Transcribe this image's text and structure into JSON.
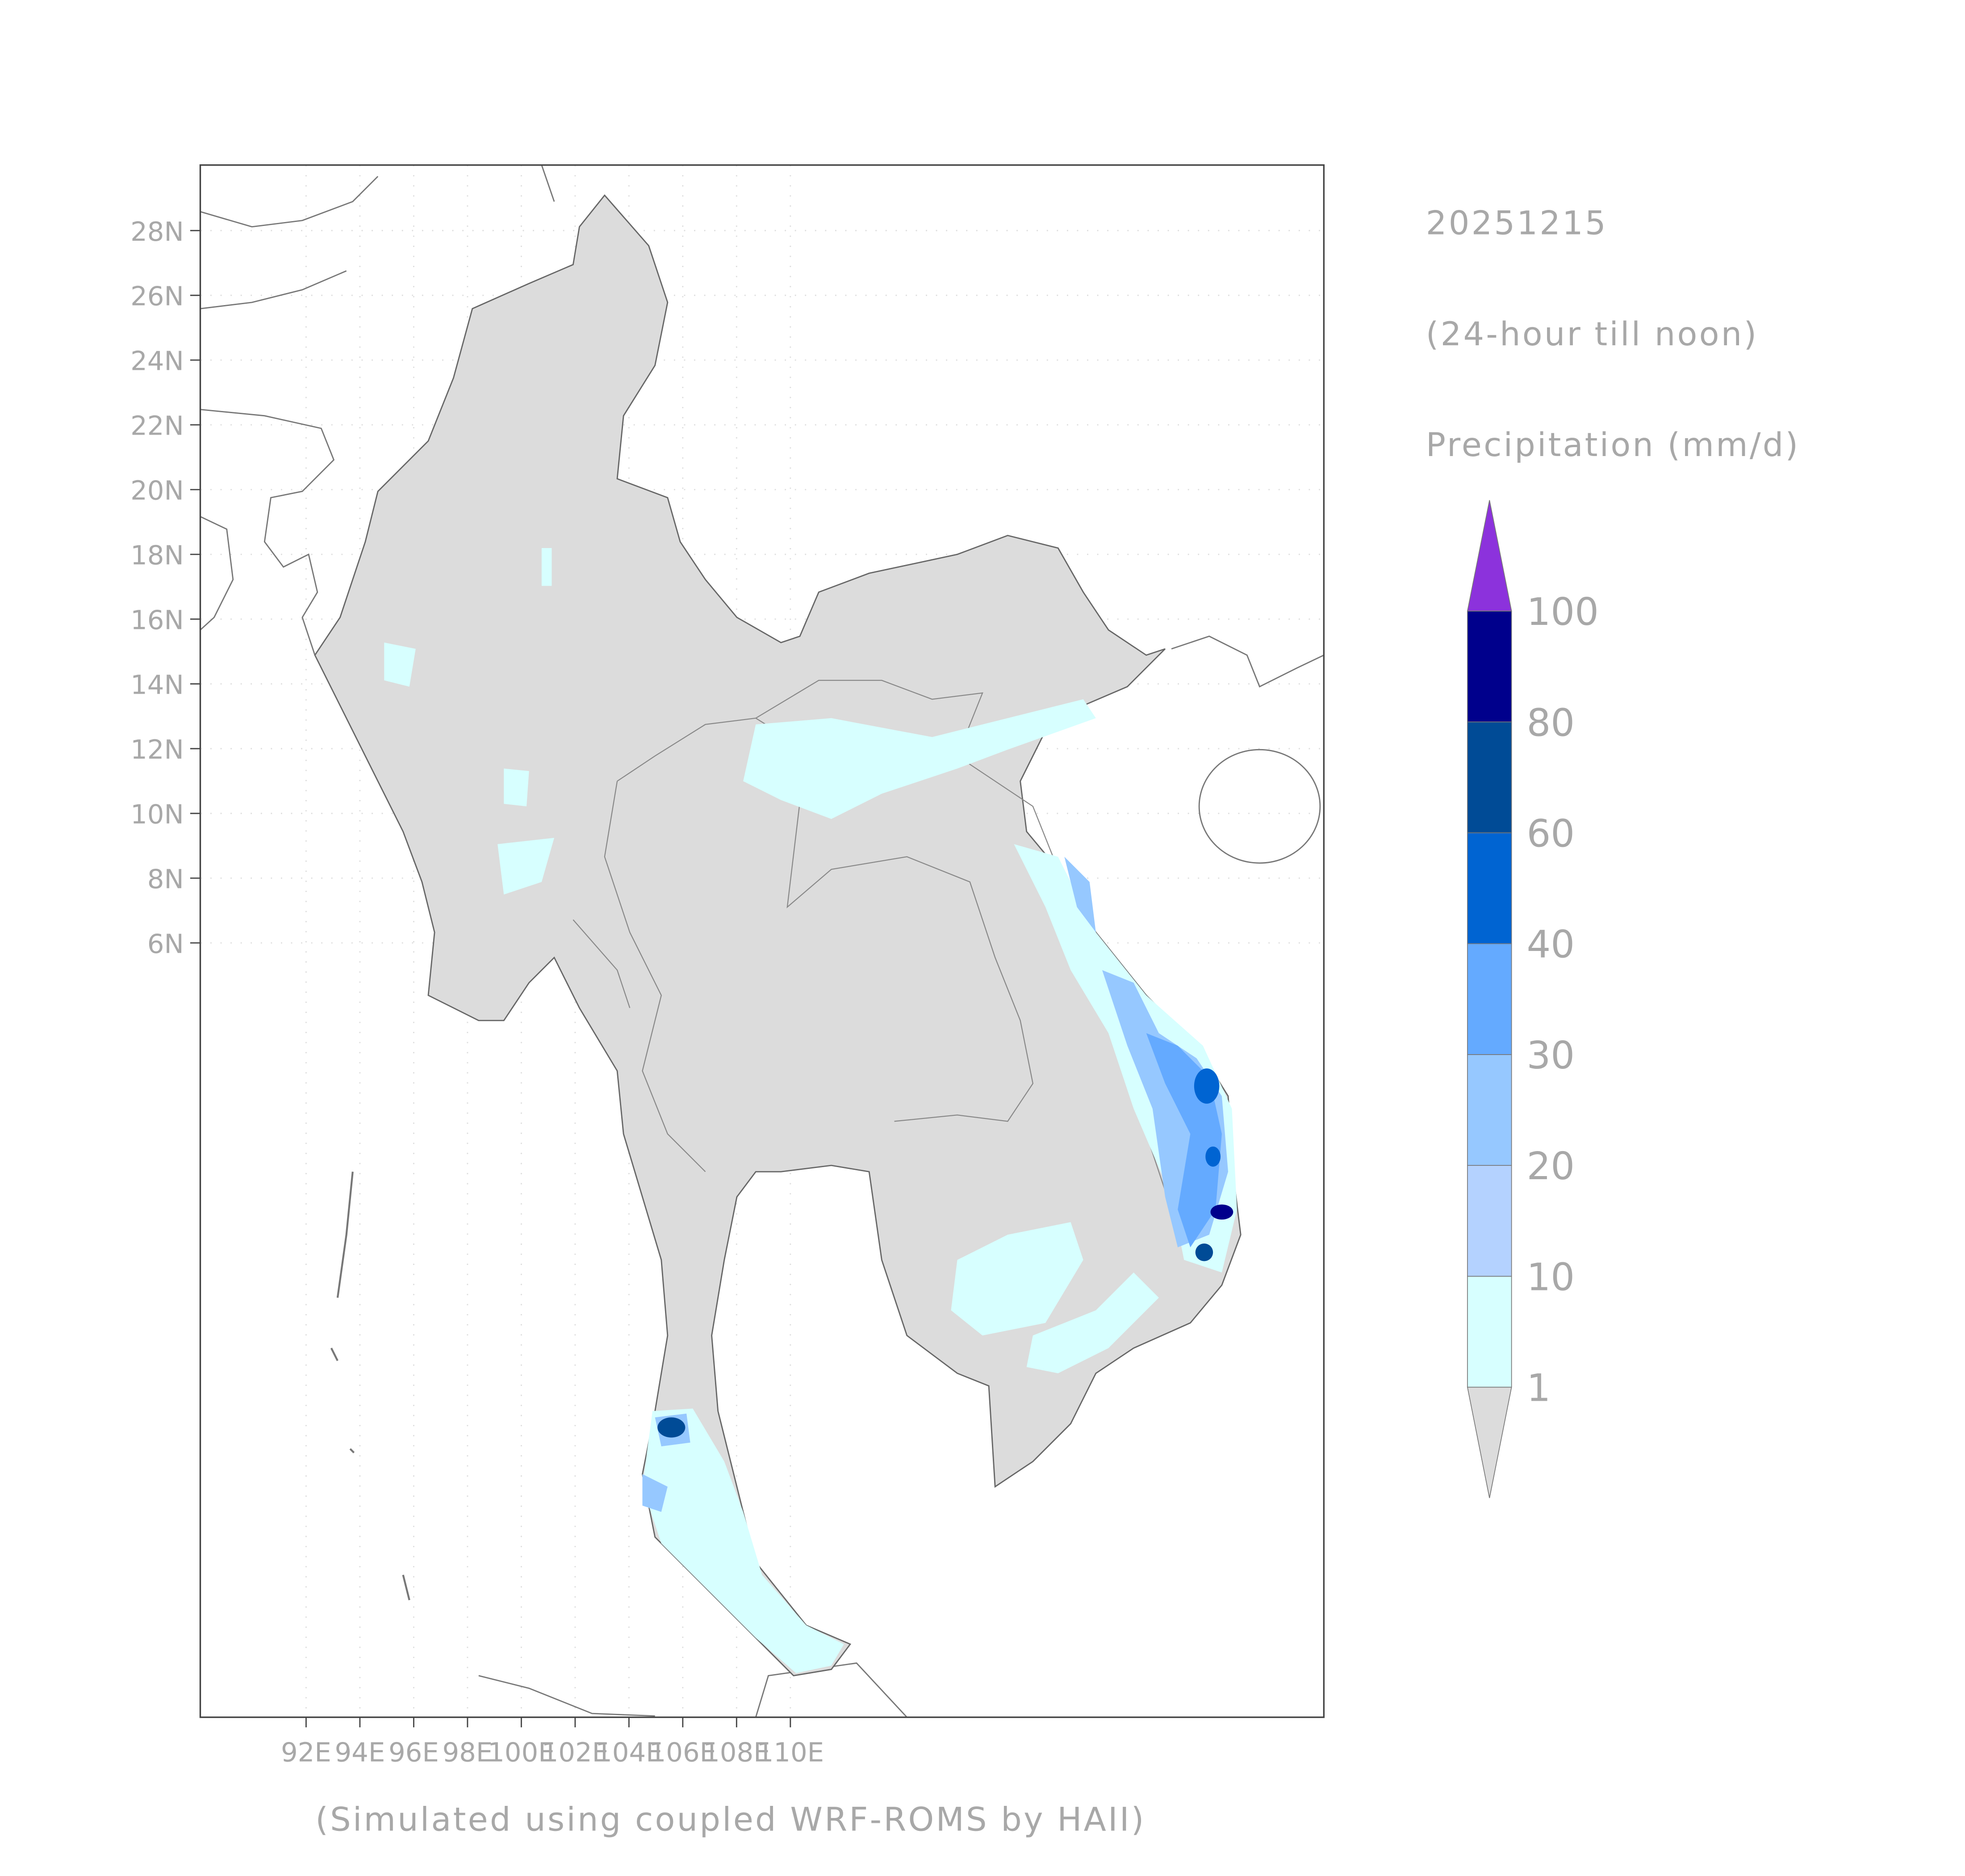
{
  "map": {
    "date": "20251215",
    "period": "(24-hour till noon)",
    "variable": "Precipitation (mm/d)",
    "footer": "(Simulated using coupled WRF-ROMS by HAII)",
    "lat_ticks": [
      "28N",
      "26N",
      "24N",
      "22N",
      "20N",
      "18N",
      "16N",
      "14N",
      "12N",
      "10N",
      "8N",
      "6N"
    ],
    "lon_ticks": [
      "92E",
      "94E",
      "96E",
      "98E",
      "100E",
      "102E",
      "104E",
      "106E",
      "108E",
      "110E"
    ],
    "legend": {
      "levels": [
        1,
        10,
        20,
        30,
        40,
        60,
        80,
        100
      ],
      "colors": [
        "#dcdcdc",
        "#d7ffff",
        "#b4d2ff",
        "#96c8ff",
        "#64aaff",
        "#0064d2",
        "#004b96",
        "#00008c",
        "#8c32dc"
      ]
    }
  }
}
